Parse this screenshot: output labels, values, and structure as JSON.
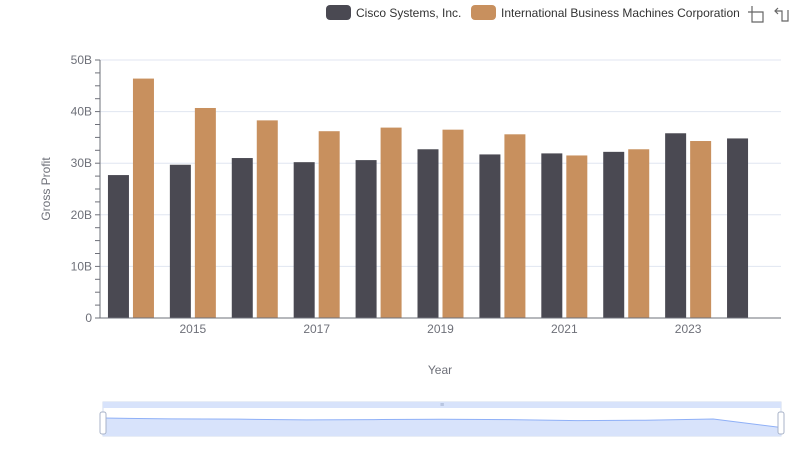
{
  "colors": {
    "series": [
      "#4a4952",
      "#c8905e"
    ],
    "grid": "#e0e6f1",
    "axis": "#6e7079",
    "slider_fill": "#d8e3fb",
    "slider_border": "#d2dbee",
    "slider_line": "#8fb0f7"
  },
  "toolbox": {
    "zoom_icon": "zoom-icon",
    "restore_icon": "restore-icon"
  },
  "chart_data": {
    "type": "bar",
    "xlabel": "Year",
    "ylabel": "Gross Profit",
    "ylim": [
      0,
      50000000000
    ],
    "yticks": [
      0,
      10000000000,
      20000000000,
      30000000000,
      40000000000,
      50000000000
    ],
    "ytick_labels": [
      "0",
      "10B",
      "20B",
      "30B",
      "40B",
      "50B"
    ],
    "categories": [
      "2014",
      "2015",
      "2016",
      "2017",
      "2018",
      "2019",
      "2020",
      "2021",
      "2022",
      "2023",
      "2024"
    ],
    "xtick_labels_shown": [
      "2015",
      "2017",
      "2019",
      "2021",
      "2023"
    ],
    "legend_position": "top-right",
    "grid": true,
    "series": [
      {
        "name": "Cisco Systems, Inc.",
        "values": [
          27700000000,
          29700000000,
          31000000000,
          30200000000,
          30600000000,
          32700000000,
          31700000000,
          31900000000,
          32200000000,
          35800000000,
          34800000000
        ]
      },
      {
        "name": "International Business Machines Corporation",
        "values": [
          46400000000,
          40700000000,
          38300000000,
          36200000000,
          36900000000,
          36500000000,
          35600000000,
          31500000000,
          32700000000,
          34300000000,
          null
        ]
      }
    ]
  }
}
